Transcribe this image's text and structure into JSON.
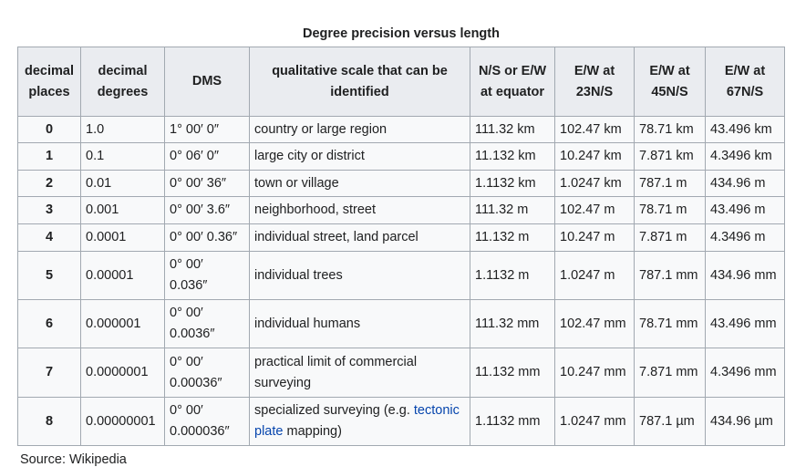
{
  "title": "Degree precision versus length",
  "table": {
    "headers": [
      "decimal places",
      "decimal degrees",
      "DMS",
      "qualitative scale that can be identified",
      "N/S or E/W at equator",
      "E/W at 23N/S",
      "E/W at 45N/S",
      "E/W at 67N/S"
    ],
    "rows": [
      [
        "0",
        "1.0",
        "1° 00′ 0″",
        "country or large region",
        "111.32 km",
        "102.47 km",
        "78.71 km",
        "43.496 km"
      ],
      [
        "1",
        "0.1",
        "0° 06′ 0″",
        "large city or district",
        "11.132 km",
        "10.247 km",
        "7.871 km",
        "4.3496 km"
      ],
      [
        "2",
        "0.01",
        "0° 00′ 36″",
        "town or village",
        "1.1132 km",
        "1.0247 km",
        "787.1 m",
        "434.96 m"
      ],
      [
        "3",
        "0.001",
        "0° 00′ 3.6″",
        "neighborhood, street",
        "111.32 m",
        "102.47 m",
        "78.71 m",
        "43.496 m"
      ],
      [
        "4",
        "0.0001",
        "0° 00′ 0.36″",
        "individual street, land parcel",
        "11.132 m",
        "10.247 m",
        "7.871 m",
        "4.3496 m"
      ],
      [
        "5",
        "0.00001",
        "0° 00′ 0.036″",
        "individual trees",
        "1.1132 m",
        "1.0247 m",
        "787.1 mm",
        "434.96 mm"
      ],
      [
        "6",
        "0.000001",
        "0° 00′ 0.0036″",
        "individual humans",
        "111.32 mm",
        "102.47 mm",
        "78.71 mm",
        "43.496 mm"
      ],
      [
        "7",
        "0.0000001",
        "0° 00′ 0.00036″",
        "practical limit of commercial surveying",
        "11.132 mm",
        "10.247 mm",
        "7.871 mm",
        "4.3496 mm"
      ],
      [
        "8",
        "0.00000001",
        "0° 00′ 0.000036″",
        [
          "specialized surveying (e.g.",
          "tectonic plate",
          "mapping)"
        ],
        "1.1132 mm",
        "1.0247 mm",
        "787.1 µm",
        "434.96 µm"
      ]
    ]
  },
  "source": "Source: Wikipedia"
}
